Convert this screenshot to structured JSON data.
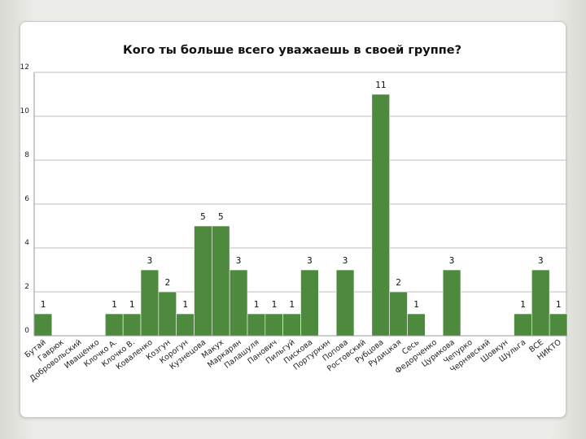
{
  "chart_data": {
    "type": "bar",
    "title": "Кого ты больше всего уважаешь в своей группе?",
    "xlabel": "",
    "ylabel": "",
    "ylim": [
      0,
      12
    ],
    "yticks": [
      0,
      2,
      4,
      6,
      8,
      10,
      12
    ],
    "grid": true,
    "legend": "none",
    "bar_color": "#4e8a3e",
    "categories": [
      "Бутай",
      "Гаврюк",
      "Добровольский",
      "Иващенко",
      "Клочко А.",
      "Клочко В.",
      "Коваленко",
      "Козгун",
      "Корогун",
      "Кузнецова",
      "Макух",
      "Маркарян",
      "Палашуля",
      "Панович",
      "Пильгуй",
      "Пискова",
      "Портуркин",
      "Попова",
      "Ростовский",
      "Рубцова",
      "Рудицкая",
      "Сесь",
      "Федорченко",
      "Цурикова",
      "Чепурко",
      "Чернявский",
      "Шовкун",
      "Шульга",
      "ВСЕ",
      "НИКТО"
    ],
    "values": [
      1,
      0,
      0,
      0,
      1,
      1,
      3,
      2,
      1,
      5,
      5,
      3,
      1,
      1,
      1,
      3,
      0,
      3,
      0,
      11,
      2,
      1,
      0,
      3,
      0,
      0,
      0,
      1,
      3,
      1
    ]
  }
}
